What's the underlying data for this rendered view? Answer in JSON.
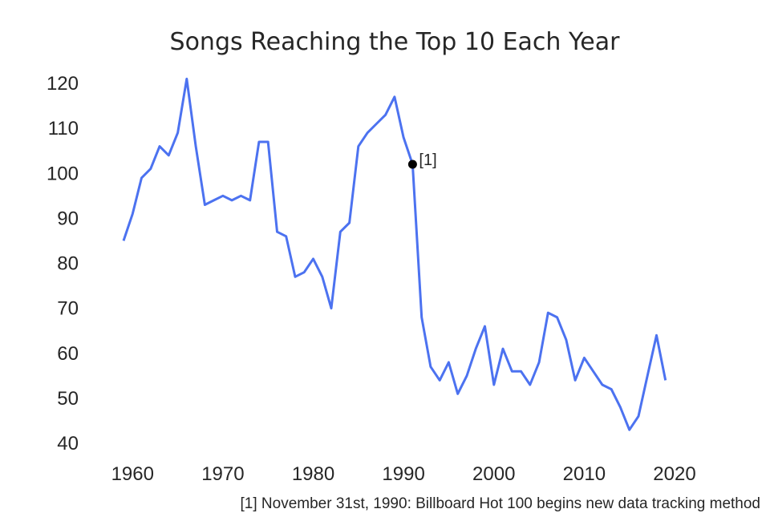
{
  "chart_data": {
    "type": "line",
    "title": "Songs Reaching the Top 10 Each Year",
    "xlabel": "",
    "ylabel": "",
    "xlim": [
      1955,
      2025
    ],
    "ylim": [
      37,
      124
    ],
    "grid": false,
    "x_ticks": [
      1960,
      1970,
      1980,
      1990,
      2000,
      2010,
      2020
    ],
    "y_ticks": [
      40,
      50,
      60,
      70,
      80,
      90,
      100,
      110,
      120
    ],
    "line_color": "#4c72f0",
    "series": [
      {
        "x": [
          1959,
          1960,
          1961,
          1962,
          1963,
          1964,
          1965,
          1966,
          1967,
          1968,
          1969,
          1970,
          1971,
          1972,
          1973,
          1974,
          1975,
          1976,
          1977,
          1978,
          1979,
          1980,
          1981,
          1982,
          1983,
          1984,
          1985,
          1986,
          1987,
          1988,
          1989,
          1990,
          1991,
          1992,
          1993,
          1994,
          1995,
          1996,
          1997,
          1998,
          1999,
          2000,
          2001,
          2002,
          2003,
          2004,
          2005,
          2006,
          2007,
          2008,
          2009,
          2010,
          2011,
          2012,
          2013,
          2014,
          2015,
          2016,
          2017,
          2018,
          2019
        ],
        "values": [
          85,
          91,
          99,
          101,
          106,
          104,
          109,
          121,
          106,
          93,
          94,
          95,
          94,
          95,
          94,
          107,
          107,
          87,
          86,
          77,
          78,
          81,
          77,
          70,
          87,
          89,
          106,
          109,
          111,
          113,
          117,
          108,
          102,
          68,
          57,
          54,
          58,
          51,
          55,
          61,
          66,
          53,
          61,
          56,
          56,
          53,
          58,
          69,
          68,
          63,
          54,
          59,
          56,
          53,
          52,
          48,
          43,
          46,
          55,
          64,
          54
        ]
      }
    ],
    "annotations": [
      {
        "label": "[1]",
        "x": 1991,
        "y": 102
      }
    ],
    "footnote": "[1] November 31st, 1990: Billboard Hot 100 begins new data tracking method"
  }
}
